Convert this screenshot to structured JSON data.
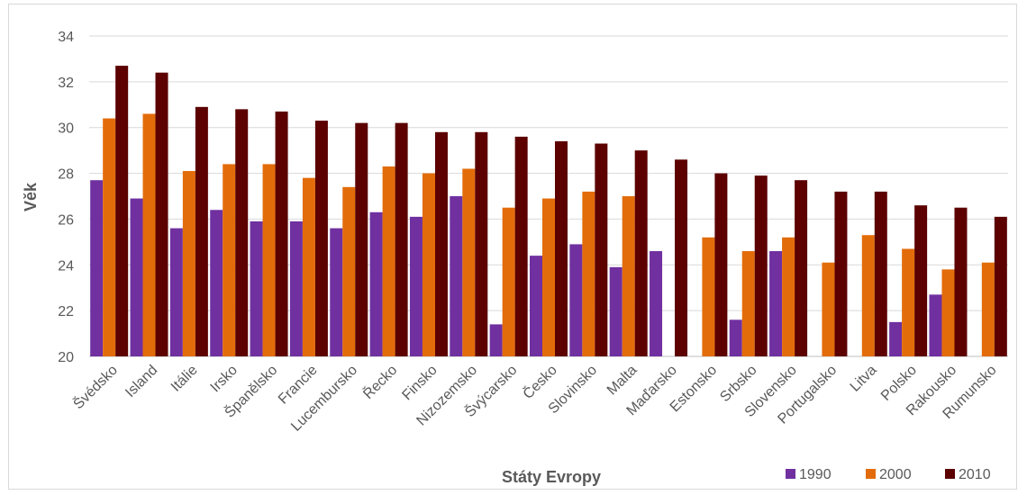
{
  "chart_data": {
    "type": "bar",
    "xlabel": "Státy Evropy",
    "ylabel": "Věk",
    "ylim": [
      20,
      34
    ],
    "yticks": [
      20,
      22,
      24,
      26,
      28,
      30,
      32,
      34
    ],
    "grid": true,
    "legend_position": "bottom-right",
    "categories": [
      "Švédsko",
      "Island",
      "Itálie",
      "Irsko",
      "Španělsko",
      "Francie",
      "Lucembursko",
      "Řecko",
      "Finsko",
      "Nizozemsko",
      "Švýcarsko",
      "Česko",
      "Slovinsko",
      "Malta",
      "Maďarsko",
      "Estonsko",
      "Srbsko",
      "Slovensko",
      "Portugalsko",
      "Litva",
      "Polsko",
      "Rakousko",
      "Rumunsko"
    ],
    "series": [
      {
        "name": "1990",
        "color": "#7030a0",
        "values": [
          27.7,
          26.9,
          25.6,
          26.4,
          25.9,
          25.9,
          25.6,
          26.3,
          26.1,
          27.0,
          21.4,
          24.4,
          24.9,
          23.9,
          24.6,
          null,
          21.6,
          24.6,
          null,
          null,
          21.5,
          22.7,
          null
        ]
      },
      {
        "name": "2000",
        "color": "#e36c0a",
        "values": [
          30.4,
          30.6,
          28.1,
          28.4,
          28.4,
          27.8,
          27.4,
          28.3,
          28.0,
          28.2,
          26.5,
          26.9,
          27.2,
          27.0,
          null,
          25.2,
          24.6,
          25.2,
          24.1,
          25.3,
          24.7,
          23.8,
          24.1
        ]
      },
      {
        "name": "2010",
        "color": "#5c0000",
        "values": [
          32.7,
          32.4,
          30.9,
          30.8,
          30.7,
          30.3,
          30.2,
          30.2,
          29.8,
          29.8,
          29.6,
          29.4,
          29.3,
          29.0,
          28.6,
          28.0,
          27.9,
          27.7,
          27.2,
          27.2,
          26.6,
          26.5,
          26.1
        ]
      }
    ]
  }
}
